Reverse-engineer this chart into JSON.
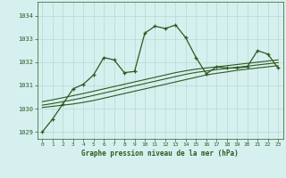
{
  "title": "Graphe pression niveau de la mer (hPa)",
  "background_color": "#d6f0f0",
  "plot_bg_color": "#d6f0f0",
  "grid_color": "#b8d8d0",
  "line_color": "#2d5a1e",
  "xlim": [
    -0.5,
    23.5
  ],
  "ylim": [
    1028.7,
    1034.6
  ],
  "yticks": [
    1029,
    1030,
    1031,
    1032,
    1033,
    1034
  ],
  "xticks": [
    0,
    1,
    2,
    3,
    4,
    5,
    6,
    7,
    8,
    9,
    10,
    11,
    12,
    13,
    14,
    15,
    16,
    17,
    18,
    19,
    20,
    21,
    22,
    23
  ],
  "main_series": [
    1029.0,
    1029.55,
    1030.2,
    1030.85,
    1031.05,
    1031.45,
    1032.2,
    1032.1,
    1031.55,
    1031.6,
    1033.25,
    1033.55,
    1033.45,
    1033.6,
    1033.05,
    1032.2,
    1031.5,
    1031.8,
    1031.75,
    1031.75,
    1031.8,
    1032.5,
    1032.35,
    1031.75
  ],
  "trend_series_1": [
    1030.05,
    1030.1,
    1030.15,
    1030.2,
    1030.27,
    1030.35,
    1030.45,
    1030.55,
    1030.65,
    1030.75,
    1030.85,
    1030.95,
    1031.05,
    1031.15,
    1031.25,
    1031.35,
    1031.45,
    1031.52,
    1031.58,
    1031.65,
    1031.7,
    1031.75,
    1031.8,
    1031.85
  ],
  "trend_series_2": [
    1030.15,
    1030.22,
    1030.3,
    1030.38,
    1030.47,
    1030.57,
    1030.67,
    1030.77,
    1030.88,
    1030.98,
    1031.08,
    1031.18,
    1031.28,
    1031.38,
    1031.48,
    1031.56,
    1031.62,
    1031.68,
    1031.73,
    1031.78,
    1031.83,
    1031.88,
    1031.93,
    1031.98
  ],
  "trend_series_3": [
    1030.3,
    1030.38,
    1030.47,
    1030.56,
    1030.65,
    1030.75,
    1030.85,
    1030.95,
    1031.05,
    1031.15,
    1031.25,
    1031.35,
    1031.45,
    1031.55,
    1031.63,
    1031.7,
    1031.75,
    1031.8,
    1031.85,
    1031.9,
    1031.95,
    1032.0,
    1032.05,
    1032.1
  ]
}
